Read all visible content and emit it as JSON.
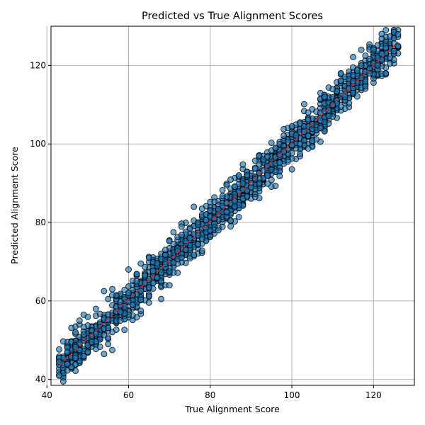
{
  "chart_data": {
    "type": "scatter",
    "title": "Predicted vs True Alignment Scores",
    "xlabel": "True Alignment Score",
    "ylabel": "Predicted Alignment Score",
    "xlim": [
      41,
      130
    ],
    "ylim": [
      38.5,
      130
    ],
    "xticks": [
      40,
      60,
      80,
      100,
      120
    ],
    "yticks": [
      40,
      60,
      80,
      100,
      120
    ],
    "grid": true,
    "point_color": "#1f77b4",
    "point_edge_color": "#000000",
    "point_alpha": 0.65,
    "reference_line": {
      "from": [
        43,
        43.5
      ],
      "to": [
        126,
        126
      ],
      "color": "#d62728",
      "style": "dashed"
    },
    "x_integer_values": true,
    "x_range": [
      43,
      126
    ],
    "noise_sd_approx": 2.4,
    "n_points_approx": 1500,
    "sample_points": [
      [
        43,
        45.5
      ],
      [
        43,
        44.5
      ],
      [
        45,
        47
      ],
      [
        47,
        52
      ],
      [
        47,
        45.5
      ],
      [
        48,
        55
      ],
      [
        49,
        56.5
      ],
      [
        50,
        47
      ],
      [
        52,
        58
      ],
      [
        54,
        62.5
      ],
      [
        54,
        46.5
      ],
      [
        55,
        49
      ],
      [
        56,
        47.5
      ],
      [
        56,
        63
      ],
      [
        58,
        55
      ],
      [
        60,
        68
      ],
      [
        60,
        62
      ],
      [
        62,
        65
      ],
      [
        63,
        57.5
      ],
      [
        65,
        71
      ],
      [
        67,
        66
      ],
      [
        68,
        60.5
      ],
      [
        69,
        73
      ],
      [
        70,
        64
      ],
      [
        71,
        77.5
      ],
      [
        73,
        71
      ],
      [
        75,
        76
      ],
      [
        77,
        80
      ],
      [
        78,
        83.5
      ],
      [
        80,
        78
      ],
      [
        80,
        85.2
      ],
      [
        82,
        78
      ],
      [
        84,
        89.5
      ],
      [
        85,
        80.5
      ],
      [
        87,
        92
      ],
      [
        88,
        86
      ],
      [
        90,
        90
      ],
      [
        91,
        86.5
      ],
      [
        92,
        97
      ],
      [
        94,
        92
      ],
      [
        96,
        99
      ],
      [
        98,
        98
      ],
      [
        99,
        95.5
      ],
      [
        100,
        104.5
      ],
      [
        102,
        100
      ],
      [
        104,
        108
      ],
      [
        105,
        105
      ],
      [
        107,
        104
      ],
      [
        108,
        112
      ],
      [
        110,
        110
      ],
      [
        112,
        118
      ],
      [
        112,
        109.5
      ],
      [
        113,
        112
      ],
      [
        115,
        116
      ],
      [
        117,
        120
      ],
      [
        118,
        122.5
      ],
      [
        119,
        118
      ],
      [
        120,
        124
      ],
      [
        121,
        120
      ],
      [
        122,
        123
      ],
      [
        123,
        118
      ],
      [
        124,
        122
      ],
      [
        124,
        120.5
      ],
      [
        126,
        125
      ]
    ]
  }
}
